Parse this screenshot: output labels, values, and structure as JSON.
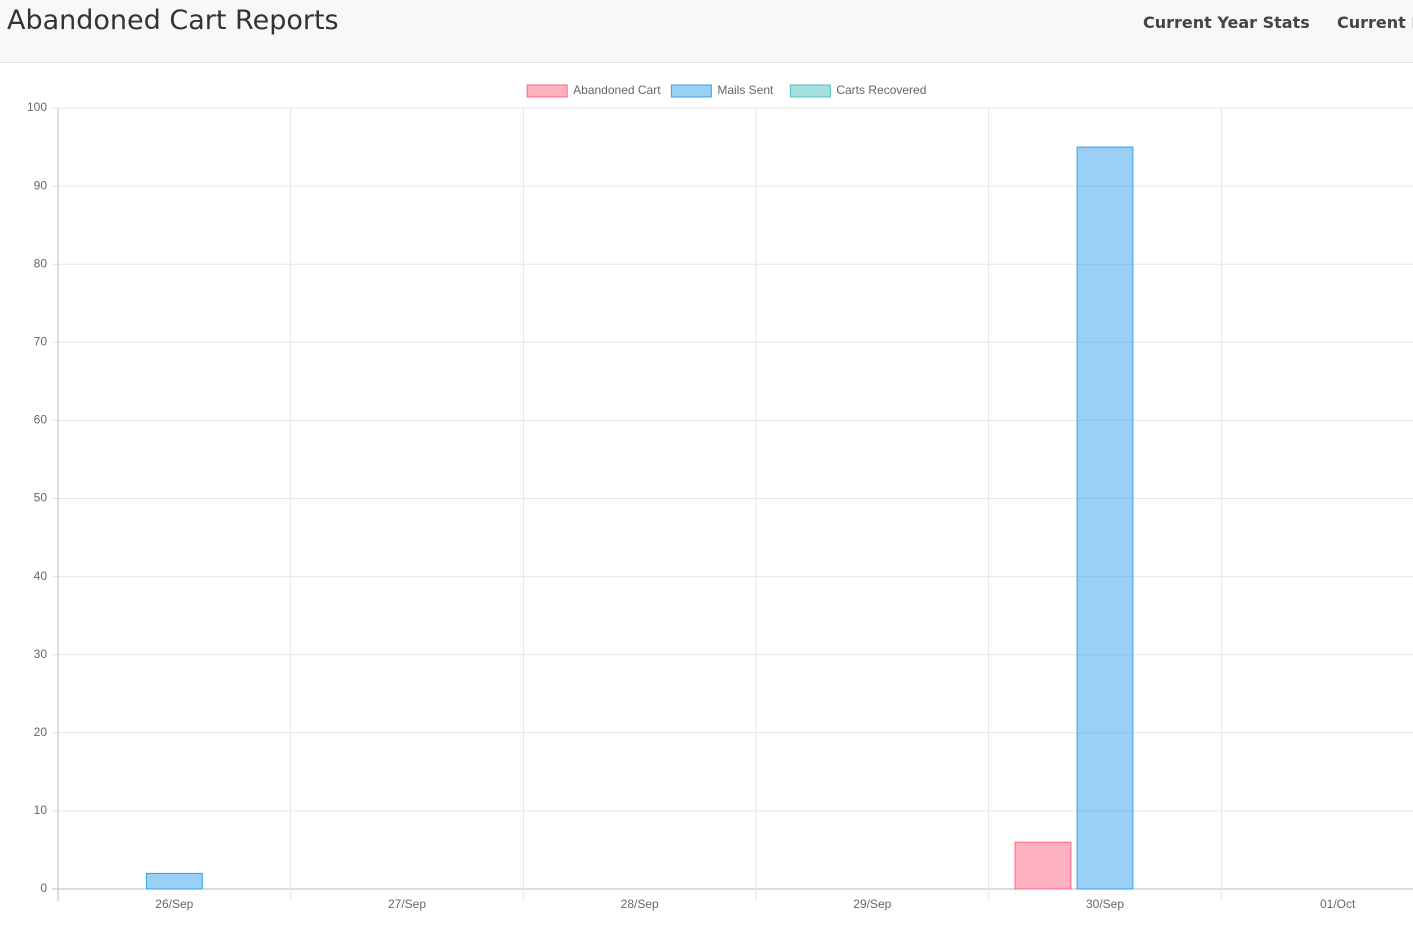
{
  "header": {
    "title": "Abandoned Cart Reports",
    "nav": [
      "Current Year Stats",
      "Current M"
    ]
  },
  "chart_data": {
    "type": "bar",
    "categories": [
      "26/Sep",
      "27/Sep",
      "28/Sep",
      "29/Sep",
      "30/Sep",
      "01/Oct"
    ],
    "series": [
      {
        "name": "Abandoned Cart",
        "color": "#ff6384",
        "values": [
          0,
          0,
          0,
          0,
          6,
          0
        ]
      },
      {
        "name": "Mails Sent",
        "color": "#36a2eb",
        "values": [
          2,
          0,
          0,
          0,
          95,
          0
        ]
      },
      {
        "name": "Carts Recovered",
        "color": "#4bc0c0",
        "values": [
          0,
          0,
          0,
          0,
          0,
          0
        ]
      }
    ],
    "ylim": [
      0,
      100
    ],
    "yticks": [
      0,
      10,
      20,
      30,
      40,
      50,
      60,
      70,
      80,
      90,
      100
    ],
    "grid": true,
    "legend": "top"
  }
}
